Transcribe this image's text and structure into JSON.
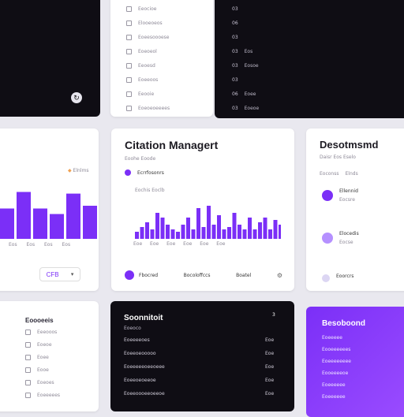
{
  "center_card": {
    "title": "Citation Managert",
    "header_text": "Ecrrfosonrs",
    "chart_label": "Eochis Eoclb",
    "footer_left": "Fbocred",
    "footer_mid": "Bocoloffccs",
    "footer_right": "Boatel",
    "colors": {
      "accent": "#7b2ff7"
    }
  },
  "left_card": {
    "badge": "Elnlms",
    "select_value": "CFB"
  },
  "right_card": {
    "title": "Desotmsmd",
    "meta": "Daisr   Eos Eselo",
    "header_a": "Eoconss",
    "header_b": "Elnds",
    "items": [
      {
        "name": "Ellennid",
        "sub": "Eocsre"
      },
      {
        "name": "Elocedis",
        "sub": "Eocse"
      },
      {
        "name": "Eoorcrs",
        "sub": ""
      }
    ]
  },
  "top_middle_list": [
    "Eeocioe",
    "Elooeoeos",
    "Eoeesoooese",
    "Eoeoeol",
    "Eeoesd",
    "Eoeeoos",
    "Eeooie",
    "Eoeoeoeeees"
  ],
  "top_right_list": [
    {
      "num": "03",
      "label": ""
    },
    {
      "num": "06",
      "label": ""
    },
    {
      "num": "03",
      "label": ""
    },
    {
      "num": "03",
      "label": "Eos"
    },
    {
      "num": "03",
      "label": "Eosoe"
    },
    {
      "num": "03",
      "label": ""
    },
    {
      "num": "06",
      "label": "Eoee"
    },
    {
      "num": "03",
      "label": "Eoeoe"
    }
  ],
  "bottom_left": {
    "title": "Eoooeeis",
    "items": [
      "Eeeooos",
      "Eoeoe",
      "Eoee",
      "Eooe",
      "Eoeoes",
      "Eoeeeees"
    ]
  },
  "bottom_middle": {
    "title": "Soonnitoit",
    "subtitle": "Eoeoco",
    "corner": "3",
    "rows": [
      {
        "left": "Eoeeeeoes",
        "right": "Eoe"
      },
      {
        "left": "Eoeeoeooooo",
        "right": "Eoe"
      },
      {
        "left": "Eoeeeeeoeeoeee",
        "right": "Eoe"
      },
      {
        "left": "Eoeeoeoeeoe",
        "right": "Eoe"
      },
      {
        "left": "Eoeeoooeeoeeoe",
        "right": "Eoe"
      }
    ]
  },
  "bottom_right": {
    "title": "Besoboond",
    "rows": [
      "Eoeeeee",
      "Eooeeeeees",
      "Eoeeeeeeee",
      "Eooeeeeoe",
      "Eoeeeeee",
      "Eoeeeeee"
    ]
  },
  "left_bar_chart": {
    "values": [
      0.55,
      0.85,
      0.55,
      0.45,
      0.82,
      0.6
    ]
  },
  "center_bar_chart": {
    "values": [
      0.15,
      0.25,
      0.35,
      0.2,
      0.55,
      0.45,
      0.3,
      0.2,
      0.15,
      0.3,
      0.45,
      0.2,
      0.65,
      0.25,
      0.7,
      0.3,
      0.5,
      0.2,
      0.25,
      0.55,
      0.3,
      0.2,
      0.45,
      0.2,
      0.35,
      0.45,
      0.2,
      0.4,
      0.3
    ]
  }
}
